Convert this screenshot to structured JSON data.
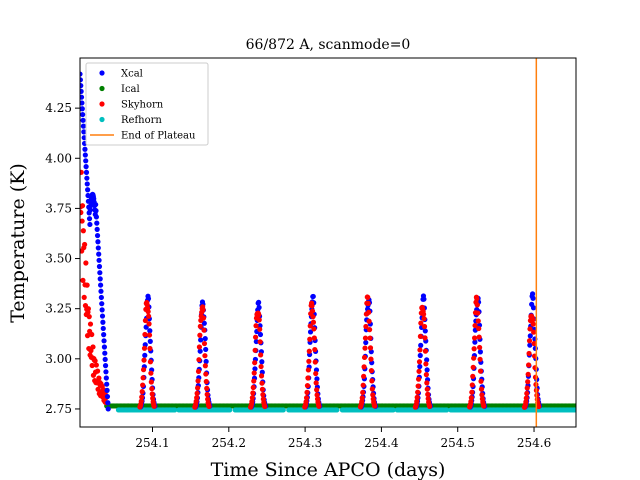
{
  "chart_data": {
    "type": "scatter",
    "title": "66/872 A, scanmode=0",
    "xlabel": "Time Since APCO (days)",
    "ylabel": "Temperature (K)",
    "xlim": [
      254.005,
      254.655
    ],
    "ylim": [
      2.66,
      4.5
    ],
    "xticks": [
      254.1,
      254.2,
      254.3,
      254.4,
      254.5,
      254.6
    ],
    "xtick_labels": [
      "254.1",
      "254.2",
      "254.3",
      "254.4",
      "254.5",
      "254.6"
    ],
    "yticks": [
      2.75,
      3.0,
      3.25,
      3.5,
      3.75,
      4.0,
      4.25
    ],
    "ytick_labels": [
      "2.75",
      "3.00",
      "3.25",
      "3.50",
      "3.75",
      "4.00",
      "4.25"
    ],
    "grid": false,
    "legend_position": "top-left",
    "series": [
      {
        "name": "Xcal",
        "color": "#0000ff",
        "marker": "dot",
        "baseline": 2.75,
        "initial_peak": 4.42,
        "peak_times": [
          254.094,
          254.166,
          254.239,
          254.31,
          254.383,
          254.455,
          254.526,
          254.598
        ],
        "peak_values": [
          3.32,
          3.3,
          3.29,
          3.33,
          3.33,
          3.32,
          3.33,
          3.33
        ]
      },
      {
        "name": "Ical",
        "color": "#008000",
        "marker": "dot",
        "baseline": 2.765
      },
      {
        "name": "Skyhorn",
        "color": "#ff0000",
        "marker": "dot",
        "baseline": 2.75,
        "initial_peak": 3.93,
        "peak_times": [
          254.093,
          254.165,
          254.238,
          254.309,
          254.382,
          254.454,
          254.525,
          254.597
        ],
        "peak_values": [
          3.32,
          3.29,
          3.28,
          3.3,
          3.32,
          3.3,
          3.32,
          3.26
        ]
      },
      {
        "name": "Refhorn",
        "color": "#00bfbf",
        "marker": "dot",
        "baseline": 2.745
      },
      {
        "name": "End of Plateau",
        "color": "#ff7f0e",
        "marker": "vline",
        "x": 254.603
      }
    ]
  }
}
